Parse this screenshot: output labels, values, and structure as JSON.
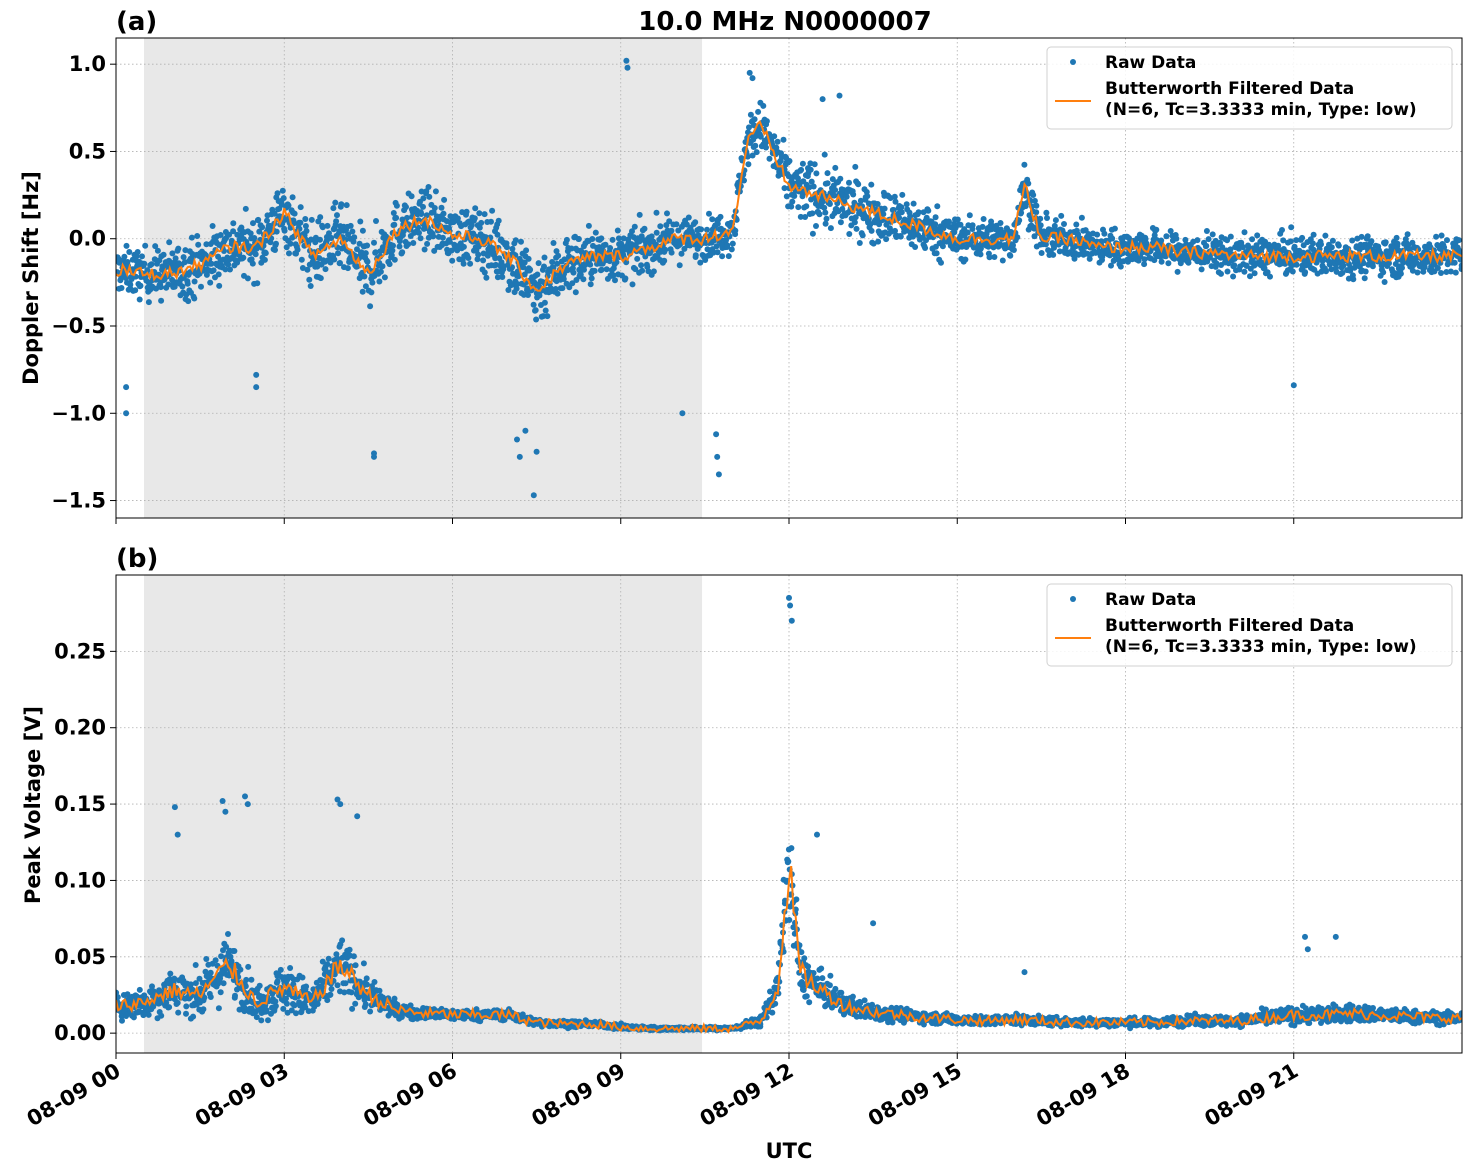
{
  "figure": {
    "title": "10.0 MHz N0000007",
    "xlabel": "UTC"
  },
  "colors": {
    "raw": "#1f77b4",
    "filtered": "#ff7f0e",
    "shade": "#e8e8e8",
    "grid": "#b0b0b0"
  },
  "legend": {
    "raw_label": "Raw Data",
    "filtered_line1": "Butterworth Filtered Data",
    "filtered_line2": "(N=6, Tc=3.3333 min, Type: low)",
    "placement": "top-right"
  },
  "chart_data": [
    {
      "type": "scatter",
      "panel_label": "(a)",
      "ylabel": "Doppler Shift [Hz]",
      "x_unit": "hours UTC on 08-09",
      "xlim": [
        0,
        24
      ],
      "ylim": [
        -1.6,
        1.15
      ],
      "yticks": [
        1.0,
        0.5,
        0.0,
        -0.5,
        -1.0,
        -1.5
      ],
      "ytick_labels": [
        "1.0",
        "0.5",
        "0.0",
        "−0.5",
        "−1.0",
        "−1.5"
      ],
      "shaded_x": [
        0.5,
        10.45
      ],
      "grid": true,
      "series": [
        {
          "name": "Raw Data",
          "kind": "points",
          "x": [
            0,
            0.5,
            1,
            1.5,
            2,
            2.5,
            3,
            3.5,
            4,
            4.5,
            5,
            5.5,
            6,
            6.5,
            7,
            7.5,
            8,
            8.5,
            9,
            9.5,
            10,
            10.5,
            11,
            11.25,
            11.5,
            12,
            12.5,
            13,
            13.5,
            14,
            14.5,
            15,
            15.5,
            16,
            16.2,
            16.5,
            17,
            17.5,
            18,
            18.5,
            19,
            19.5,
            20,
            20.5,
            21,
            21.5,
            22,
            22.5,
            23,
            23.5,
            24
          ],
          "center": [
            -0.18,
            -0.2,
            -0.2,
            -0.15,
            -0.05,
            -0.05,
            0.15,
            -0.1,
            0.0,
            -0.2,
            0.05,
            0.12,
            0.02,
            0.0,
            -0.1,
            -0.3,
            -0.15,
            -0.1,
            -0.1,
            -0.05,
            0.0,
            0.0,
            0.05,
            0.55,
            0.65,
            0.3,
            0.25,
            0.2,
            0.15,
            0.1,
            0.05,
            0.0,
            0.0,
            0.0,
            0.3,
            0.0,
            0.0,
            -0.05,
            -0.05,
            -0.05,
            -0.08,
            -0.08,
            -0.1,
            -0.1,
            -0.1,
            -0.1,
            -0.1,
            -0.1,
            -0.1,
            -0.1,
            -0.1
          ],
          "spread": [
            0.22,
            0.25,
            0.28,
            0.3,
            0.3,
            0.3,
            0.32,
            0.33,
            0.35,
            0.35,
            0.3,
            0.28,
            0.28,
            0.3,
            0.35,
            0.38,
            0.32,
            0.28,
            0.25,
            0.25,
            0.22,
            0.2,
            0.22,
            0.25,
            0.25,
            0.3,
            0.32,
            0.3,
            0.28,
            0.28,
            0.25,
            0.22,
            0.2,
            0.2,
            0.25,
            0.2,
            0.18,
            0.18,
            0.18,
            0.18,
            0.18,
            0.18,
            0.2,
            0.2,
            0.2,
            0.2,
            0.2,
            0.2,
            0.2,
            0.2,
            0.2
          ],
          "outliers_x": [
            0.18,
            0.18,
            2.5,
            2.5,
            4.6,
            4.6,
            7.15,
            7.2,
            7.3,
            7.45,
            7.5,
            9.1,
            9.12,
            10.1,
            10.7,
            10.72,
            10.75,
            11.3,
            11.35,
            12.6,
            12.9,
            21.0
          ],
          "outliers_y": [
            -0.85,
            -1.0,
            -0.78,
            -0.85,
            -1.23,
            -1.25,
            -1.15,
            -1.25,
            -1.1,
            -1.47,
            -1.22,
            1.02,
            0.98,
            -1.0,
            -1.12,
            -1.25,
            -1.35,
            0.95,
            0.92,
            0.8,
            0.82,
            -0.84
          ]
        },
        {
          "name": "Butterworth Filtered Data",
          "kind": "line",
          "x": [
            0,
            0.5,
            1,
            1.5,
            2,
            2.5,
            3,
            3.5,
            4,
            4.5,
            5,
            5.5,
            6,
            6.5,
            7,
            7.5,
            8,
            8.5,
            9,
            9.5,
            10,
            10.5,
            11,
            11.25,
            11.5,
            12,
            12.5,
            13,
            13.5,
            14,
            14.5,
            15,
            15.5,
            16,
            16.2,
            16.5,
            17,
            17.5,
            18,
            18.5,
            19,
            19.5,
            20,
            20.5,
            21,
            21.5,
            22,
            22.5,
            23,
            23.5,
            24
          ],
          "y": [
            -0.18,
            -0.2,
            -0.2,
            -0.15,
            -0.05,
            -0.05,
            0.15,
            -0.1,
            0.0,
            -0.2,
            0.05,
            0.12,
            0.02,
            0.0,
            -0.1,
            -0.3,
            -0.15,
            -0.1,
            -0.1,
            -0.05,
            0.0,
            0.0,
            0.05,
            0.55,
            0.65,
            0.3,
            0.25,
            0.2,
            0.15,
            0.1,
            0.05,
            0.0,
            0.0,
            0.0,
            0.3,
            0.0,
            0.0,
            -0.05,
            -0.05,
            -0.05,
            -0.08,
            -0.08,
            -0.1,
            -0.1,
            -0.1,
            -0.1,
            -0.1,
            -0.1,
            -0.1,
            -0.1,
            -0.1
          ]
        }
      ]
    },
    {
      "type": "scatter",
      "panel_label": "(b)",
      "ylabel": "Peak Voltage [V]",
      "x_unit": "hours UTC on 08-09",
      "xlim": [
        0,
        24
      ],
      "ylim": [
        -0.013,
        0.3
      ],
      "yticks": [
        0.0,
        0.05,
        0.1,
        0.15,
        0.2,
        0.25
      ],
      "ytick_labels": [
        "0.00",
        "0.05",
        "0.10",
        "0.15",
        "0.20",
        "0.25"
      ],
      "xticks": [
        0,
        3,
        6,
        9,
        12,
        15,
        18,
        21
      ],
      "xtick_labels": [
        "08-09 00",
        "08-09 03",
        "08-09 06",
        "08-09 09",
        "08-09 12",
        "08-09 15",
        "08-09 18",
        "08-09 21"
      ],
      "shaded_x": [
        0.5,
        10.45
      ],
      "grid": true,
      "series": [
        {
          "name": "Raw Data",
          "kind": "points",
          "x": [
            0,
            0.5,
            1,
            1.5,
            2,
            2.5,
            3,
            3.5,
            4,
            4.5,
            5,
            5.5,
            6,
            6.5,
            7,
            7.5,
            8,
            8.5,
            9,
            9.5,
            10,
            10.5,
            11,
            11.5,
            11.8,
            12,
            12.2,
            12.5,
            13,
            13.5,
            14,
            14.5,
            15,
            15.5,
            16,
            16.5,
            17,
            17.5,
            18,
            18.5,
            19,
            19.5,
            20,
            20.5,
            21,
            21.5,
            22,
            22.5,
            23,
            23.5,
            24
          ],
          "center": [
            0.018,
            0.02,
            0.028,
            0.025,
            0.045,
            0.02,
            0.03,
            0.02,
            0.045,
            0.025,
            0.015,
            0.013,
            0.012,
            0.012,
            0.012,
            0.007,
            0.006,
            0.006,
            0.004,
            0.003,
            0.003,
            0.003,
            0.003,
            0.008,
            0.03,
            0.11,
            0.04,
            0.03,
            0.018,
            0.014,
            0.012,
            0.01,
            0.009,
            0.008,
            0.009,
            0.008,
            0.007,
            0.007,
            0.007,
            0.007,
            0.008,
            0.008,
            0.008,
            0.01,
            0.012,
            0.012,
            0.013,
            0.012,
            0.011,
            0.01,
            0.01
          ],
          "spread": [
            0.015,
            0.018,
            0.025,
            0.025,
            0.035,
            0.02,
            0.03,
            0.02,
            0.035,
            0.02,
            0.008,
            0.007,
            0.006,
            0.006,
            0.006,
            0.004,
            0.004,
            0.003,
            0.003,
            0.002,
            0.002,
            0.002,
            0.002,
            0.006,
            0.02,
            0.06,
            0.03,
            0.02,
            0.012,
            0.01,
            0.008,
            0.006,
            0.006,
            0.005,
            0.006,
            0.005,
            0.005,
            0.005,
            0.005,
            0.005,
            0.006,
            0.006,
            0.006,
            0.008,
            0.01,
            0.01,
            0.01,
            0.009,
            0.008,
            0.007,
            0.007
          ],
          "outliers_x": [
            1.05,
            1.1,
            1.9,
            1.95,
            2.3,
            2.35,
            3.95,
            4.0,
            4.3,
            12.0,
            12.02,
            12.05,
            12.5,
            13.5,
            16.2,
            21.2,
            21.25,
            21.75
          ],
          "outliers_y": [
            0.148,
            0.13,
            0.152,
            0.145,
            0.155,
            0.15,
            0.153,
            0.15,
            0.142,
            0.285,
            0.28,
            0.27,
            0.13,
            0.072,
            0.04,
            0.063,
            0.055,
            0.063
          ]
        },
        {
          "name": "Butterworth Filtered Data",
          "kind": "line",
          "x": [
            0,
            0.5,
            1,
            1.5,
            2,
            2.5,
            3,
            3.5,
            4,
            4.5,
            5,
            5.5,
            6,
            6.5,
            7,
            7.5,
            8,
            8.5,
            9,
            9.5,
            10,
            10.5,
            11,
            11.5,
            11.8,
            12,
            12.2,
            12.5,
            13,
            13.5,
            14,
            14.5,
            15,
            15.5,
            16,
            16.5,
            17,
            17.5,
            18,
            18.5,
            19,
            19.5,
            20,
            20.5,
            21,
            21.5,
            22,
            22.5,
            23,
            23.5,
            24
          ],
          "y": [
            0.018,
            0.02,
            0.028,
            0.025,
            0.045,
            0.02,
            0.03,
            0.02,
            0.045,
            0.025,
            0.015,
            0.013,
            0.012,
            0.012,
            0.012,
            0.007,
            0.006,
            0.006,
            0.004,
            0.003,
            0.003,
            0.003,
            0.003,
            0.008,
            0.03,
            0.11,
            0.04,
            0.03,
            0.018,
            0.014,
            0.012,
            0.01,
            0.009,
            0.008,
            0.009,
            0.008,
            0.007,
            0.007,
            0.007,
            0.007,
            0.008,
            0.008,
            0.008,
            0.01,
            0.012,
            0.012,
            0.013,
            0.012,
            0.011,
            0.01,
            0.01
          ]
        }
      ]
    }
  ]
}
